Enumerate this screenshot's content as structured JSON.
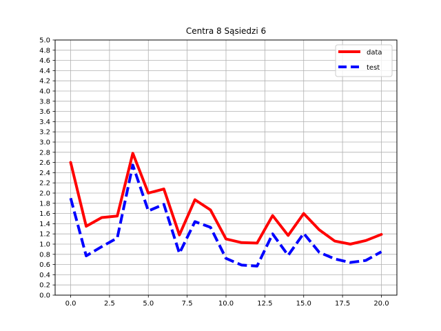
{
  "chart_data": {
    "type": "line",
    "title": "Centra 8 Sąsiedzi 6",
    "xlabel": "",
    "ylabel": "",
    "xlim": [
      -1.0,
      21.0
    ],
    "ylim": [
      0.0,
      5.0
    ],
    "x_ticks": [
      "0.0",
      "2.5",
      "5.0",
      "7.5",
      "10.0",
      "12.5",
      "15.0",
      "17.5",
      "20.0"
    ],
    "y_ticks": [
      "0.0",
      "0.2",
      "0.4",
      "0.6",
      "0.8",
      "1.0",
      "1.2",
      "1.4",
      "1.6",
      "1.8",
      "2.0",
      "2.2",
      "2.4",
      "2.6",
      "2.8",
      "3.0",
      "3.2",
      "3.4",
      "3.6",
      "3.8",
      "4.0",
      "4.2",
      "4.4",
      "4.6",
      "4.8",
      "5.0"
    ],
    "grid": true,
    "legend_position": "top-right",
    "x": [
      0,
      1,
      2,
      3,
      4,
      5,
      6,
      7,
      8,
      9,
      10,
      11,
      12,
      13,
      14,
      15,
      16,
      17,
      18,
      19,
      20
    ],
    "series": [
      {
        "name": "data",
        "color": "#ff0000",
        "style": "solid",
        "values": [
          2.6,
          1.35,
          1.52,
          1.55,
          2.78,
          2.0,
          2.08,
          1.18,
          1.87,
          1.67,
          1.1,
          1.03,
          1.02,
          1.56,
          1.17,
          1.6,
          1.28,
          1.06,
          1.0,
          1.07,
          1.19
        ]
      },
      {
        "name": "test",
        "color": "#0000ff",
        "style": "dashed",
        "values": [
          1.9,
          0.77,
          0.95,
          1.12,
          2.55,
          1.65,
          1.78,
          0.82,
          1.44,
          1.33,
          0.72,
          0.59,
          0.57,
          1.2,
          0.78,
          1.21,
          0.84,
          0.71,
          0.64,
          0.68,
          0.85
        ]
      }
    ]
  }
}
